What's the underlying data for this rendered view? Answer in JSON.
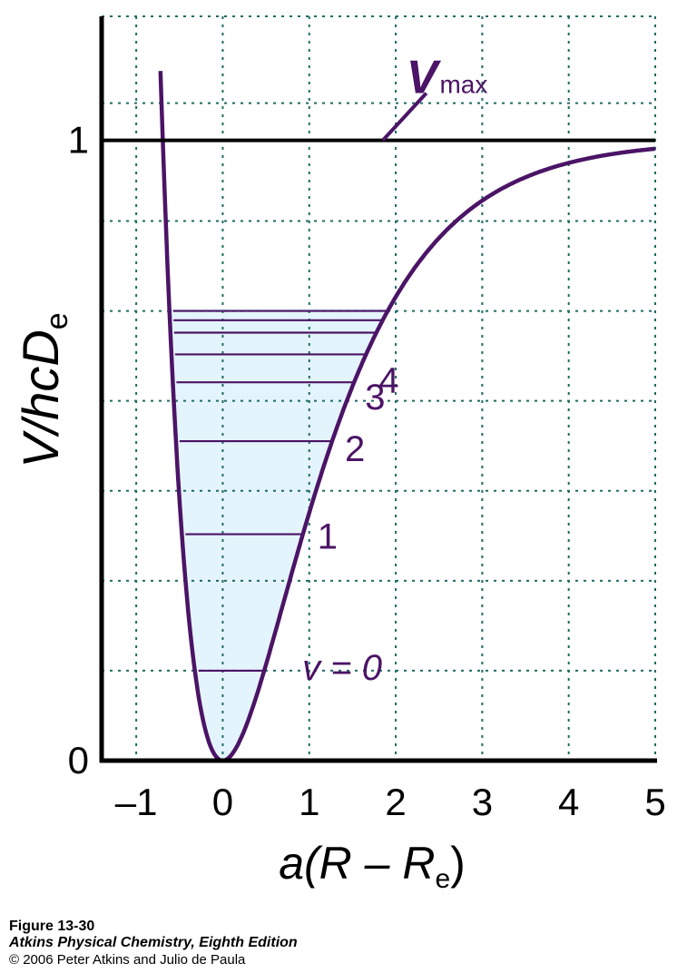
{
  "chart_data": {
    "type": "line",
    "title": "",
    "xlabel": {
      "main": "a(R – R",
      "sub": "e",
      "close": ")"
    },
    "ylabel": {
      "main": "V/hcD",
      "sub": "e"
    },
    "xlim": [
      -1.4,
      5
    ],
    "ylim": [
      0,
      1.2
    ],
    "x_ticks": [
      -1,
      0,
      1,
      2,
      3,
      4,
      5
    ],
    "x_tick_labels": [
      "–1",
      "0",
      "1",
      "2",
      "3",
      "4",
      "5"
    ],
    "y_tick_values": [
      0,
      1
    ],
    "y_tick_labels": [
      "0",
      "1"
    ],
    "grid": {
      "x": [
        -1,
        0,
        1,
        2,
        3,
        4,
        5
      ],
      "y": [
        0.145,
        0.29,
        0.435,
        0.58,
        0.725,
        0.87,
        1.06
      ]
    },
    "dissociation_line": {
      "y": 1
    },
    "series": [
      {
        "kind": "morse-potential",
        "function": "(1 - exp(-x))^2",
        "x_range": [
          -0.72,
          5
        ]
      }
    ],
    "levels": [
      {
        "label": "v = 0",
        "energy": 0.145
      },
      {
        "label": "1",
        "energy": 0.365
      },
      {
        "label": "2",
        "energy": 0.515
      },
      {
        "label": "3",
        "energy": 0.61
      },
      {
        "label": "4",
        "energy": 0.655
      },
      {
        "label": "",
        "energy": 0.69
      },
      {
        "label": "",
        "energy": 0.71
      },
      {
        "label": "",
        "energy": 0.725
      }
    ],
    "annotation": {
      "main": "V",
      "sub": "max",
      "x": 1.85,
      "y": 1
    }
  },
  "caption": {
    "figure": "Figure 13-30",
    "book": "Atkins Physical Chemistry, Eighth Edition",
    "copyright": "© 2006 Peter Atkins and Julio de Paula"
  },
  "colors": {
    "curve": "#4b1466",
    "fill": "#e4f4fc",
    "grid": "#1f6b63",
    "axis": "#000000",
    "label": "#4b1466"
  }
}
